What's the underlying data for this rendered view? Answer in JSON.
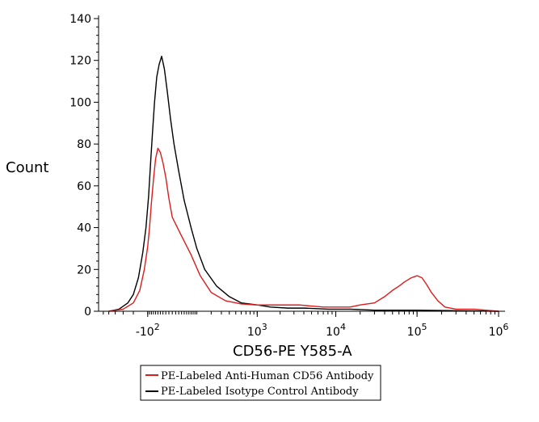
{
  "chart_data": {
    "type": "line",
    "xlabel": "CD56-PE Y585-A",
    "ylabel": "Count",
    "ylim": [
      0,
      140
    ],
    "y_ticks": [
      {
        "value": 0,
        "label": "0"
      },
      {
        "value": 20,
        "label": "20"
      },
      {
        "value": 40,
        "label": "40"
      },
      {
        "value": 60,
        "label": "60"
      },
      {
        "value": 80,
        "label": "80"
      },
      {
        "value": 100,
        "label": "100"
      },
      {
        "value": 120,
        "label": "120"
      },
      {
        "value": 140,
        "label": "140"
      }
    ],
    "x_scale": "biexponential",
    "x_ticks": [
      {
        "value": -100,
        "base": "-10",
        "exp": "2"
      },
      {
        "value": 1000,
        "base": "10",
        "exp": "3"
      },
      {
        "value": 10000,
        "base": "10",
        "exp": "4"
      },
      {
        "value": 100000,
        "base": "10",
        "exp": "5"
      },
      {
        "value": 1000000,
        "base": "10",
        "exp": "6"
      }
    ],
    "grid": false,
    "legend_position": "bottom-left",
    "series": [
      {
        "name": "PE-Labeled Anti-Human CD56 Antibody",
        "color": "#dd1c1c",
        "points": [
          [
            -500,
            0
          ],
          [
            -300,
            1
          ],
          [
            -200,
            4
          ],
          [
            -150,
            10
          ],
          [
            -120,
            20
          ],
          [
            -100,
            31
          ],
          [
            -90,
            40
          ],
          [
            -80,
            52
          ],
          [
            -70,
            63
          ],
          [
            -60,
            73
          ],
          [
            -50,
            78
          ],
          [
            -40,
            76
          ],
          [
            -30,
            71
          ],
          [
            -20,
            64
          ],
          [
            -10,
            54
          ],
          [
            0,
            45
          ],
          [
            30,
            36
          ],
          [
            70,
            27
          ],
          [
            120,
            17
          ],
          [
            200,
            9
          ],
          [
            350,
            5
          ],
          [
            600,
            3.5
          ],
          [
            1000,
            3
          ],
          [
            1500,
            3
          ],
          [
            2200,
            3
          ],
          [
            3500,
            3
          ],
          [
            5000,
            2.5
          ],
          [
            7000,
            2
          ],
          [
            10000,
            2
          ],
          [
            15000,
            2
          ],
          [
            20000,
            3
          ],
          [
            30000,
            4
          ],
          [
            40000,
            7
          ],
          [
            50000,
            10
          ],
          [
            60000,
            12
          ],
          [
            70000,
            14
          ],
          [
            85000,
            16
          ],
          [
            100000,
            17
          ],
          [
            115000,
            16
          ],
          [
            130000,
            13
          ],
          [
            150000,
            9
          ],
          [
            180000,
            5
          ],
          [
            220000,
            2
          ],
          [
            300000,
            1
          ],
          [
            500000,
            1
          ],
          [
            700000,
            0.5
          ],
          [
            1000000,
            0
          ]
        ]
      },
      {
        "name": "PE-Labeled Isotype Control Antibody",
        "color": "#000000",
        "points": [
          [
            -500,
            0
          ],
          [
            -350,
            1
          ],
          [
            -250,
            4
          ],
          [
            -200,
            8
          ],
          [
            -160,
            16
          ],
          [
            -130,
            28
          ],
          [
            -110,
            40
          ],
          [
            -95,
            55
          ],
          [
            -85,
            70
          ],
          [
            -75,
            85
          ],
          [
            -65,
            100
          ],
          [
            -55,
            112
          ],
          [
            -45,
            118
          ],
          [
            -35,
            122
          ],
          [
            -25,
            116
          ],
          [
            -15,
            105
          ],
          [
            -5,
            92
          ],
          [
            5,
            80
          ],
          [
            20,
            67
          ],
          [
            40,
            53
          ],
          [
            70,
            40
          ],
          [
            100,
            30
          ],
          [
            150,
            20
          ],
          [
            250,
            12
          ],
          [
            400,
            7
          ],
          [
            600,
            4
          ],
          [
            1000,
            3
          ],
          [
            1500,
            2
          ],
          [
            2500,
            1.5
          ],
          [
            4000,
            1.5
          ],
          [
            8000,
            1
          ],
          [
            15000,
            1
          ],
          [
            30000,
            0.5
          ],
          [
            100000,
            0.5
          ],
          [
            1000000,
            0
          ]
        ]
      }
    ]
  }
}
